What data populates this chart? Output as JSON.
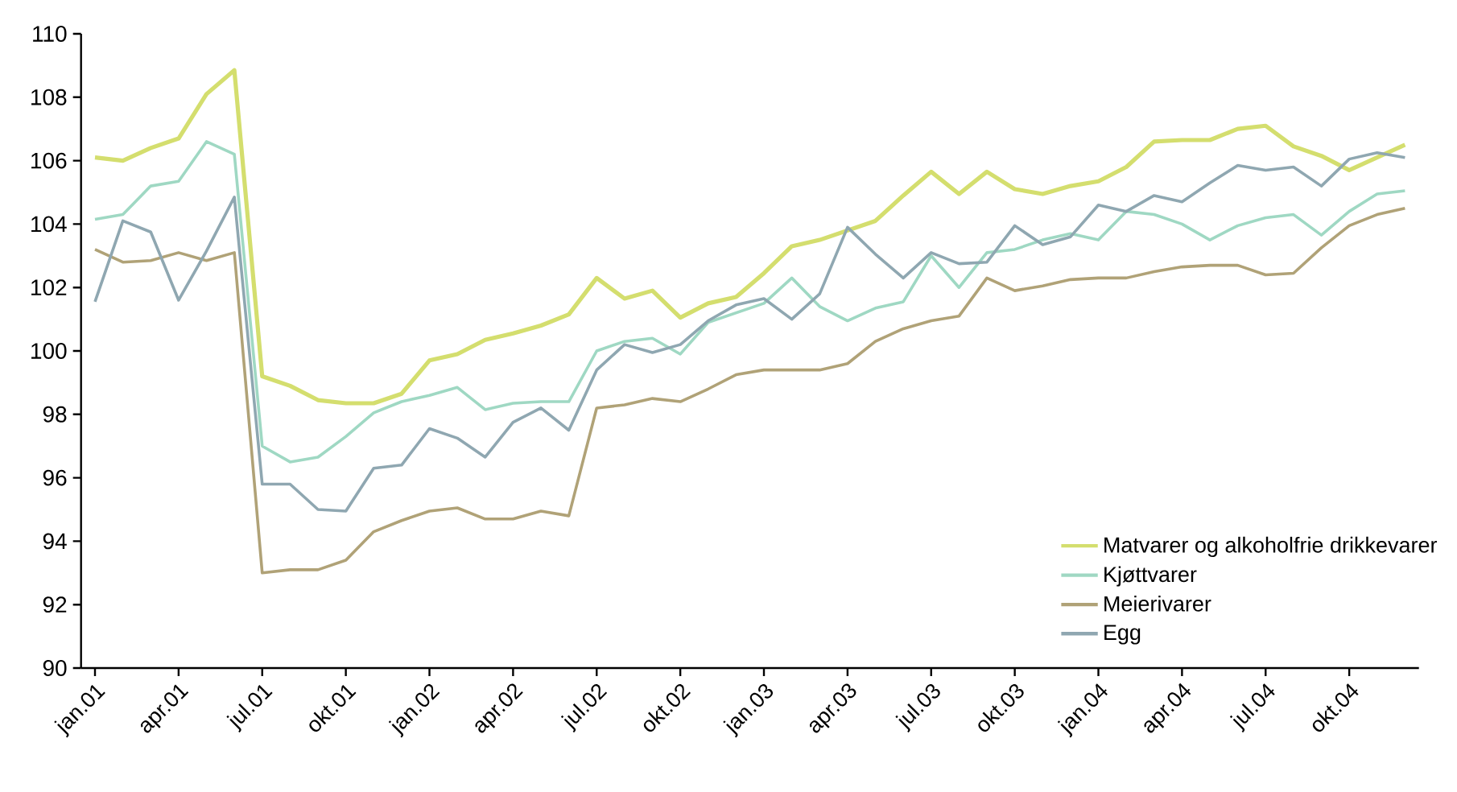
{
  "chart_data": {
    "type": "line",
    "categories": [
      "jan.01",
      null,
      null,
      "apr.01",
      null,
      null,
      "jul.01",
      null,
      null,
      "okt.01",
      null,
      null,
      "jan.02",
      null,
      null,
      "apr.02",
      null,
      null,
      "jul.02",
      null,
      null,
      "okt.02",
      null,
      null,
      "jan.03",
      null,
      null,
      "apr.03",
      null,
      null,
      "jul.03",
      null,
      null,
      "okt.03",
      null,
      null,
      "jan.04",
      null,
      null,
      "apr.04",
      null,
      null,
      "jul.04",
      null,
      null,
      "okt.04",
      null,
      null
    ],
    "series": [
      {
        "name": "Matvarer og alkoholfrie drikkevarer",
        "color": "#d4de6e",
        "values": [
          106.1,
          106.0,
          106.4,
          106.7,
          108.1,
          108.85,
          99.2,
          98.9,
          98.45,
          98.35,
          98.35,
          98.65,
          99.7,
          99.9,
          100.35,
          100.55,
          100.8,
          101.15,
          102.3,
          101.65,
          101.9,
          101.05,
          101.5,
          101.7,
          102.45,
          103.3,
          103.5,
          103.8,
          104.1,
          104.9,
          105.65,
          104.95,
          105.65,
          105.1,
          104.95,
          105.2,
          105.35,
          105.8,
          106.6,
          106.65,
          106.65,
          107.0,
          107.1,
          106.45,
          106.15,
          105.7,
          106.1,
          106.5
        ]
      },
      {
        "name": "Kjøttvarer",
        "color": "#9fd8c3",
        "values": [
          104.15,
          104.3,
          105.2,
          105.35,
          106.6,
          106.2,
          97.0,
          96.5,
          96.65,
          97.3,
          98.05,
          98.4,
          98.6,
          98.85,
          98.15,
          98.35,
          98.4,
          98.4,
          100.0,
          100.3,
          100.4,
          99.9,
          100.9,
          101.2,
          101.5,
          102.3,
          101.4,
          100.95,
          101.35,
          101.55,
          103.0,
          102.0,
          103.1,
          103.2,
          103.5,
          103.7,
          103.5,
          104.4,
          104.3,
          104.0,
          103.5,
          103.95,
          104.2,
          104.3,
          103.65,
          104.4,
          104.95,
          105.05
        ]
      },
      {
        "name": "Meierivarer",
        "color": "#b0a277",
        "values": [
          103.2,
          102.8,
          102.85,
          103.1,
          102.85,
          103.1,
          93.0,
          93.1,
          93.1,
          93.4,
          94.3,
          94.65,
          94.95,
          95.05,
          94.7,
          94.7,
          94.95,
          94.8,
          98.2,
          98.3,
          98.5,
          98.4,
          98.8,
          99.25,
          99.4,
          99.4,
          99.4,
          99.6,
          100.3,
          100.7,
          100.95,
          101.1,
          102.3,
          101.9,
          102.05,
          102.25,
          102.3,
          102.3,
          102.5,
          102.65,
          102.7,
          102.7,
          102.4,
          102.45,
          103.25,
          103.95,
          104.3,
          104.5
        ]
      },
      {
        "name": "Egg",
        "color": "#8fa7b1",
        "values": [
          101.55,
          104.1,
          103.75,
          101.6,
          103.15,
          104.85,
          95.8,
          95.8,
          95.0,
          94.95,
          96.3,
          96.4,
          97.55,
          97.25,
          96.65,
          97.75,
          98.2,
          97.5,
          99.4,
          100.2,
          99.95,
          100.2,
          100.95,
          101.45,
          101.65,
          101.0,
          101.8,
          103.9,
          103.05,
          102.3,
          103.1,
          102.75,
          102.8,
          103.95,
          103.35,
          103.6,
          104.6,
          104.4,
          104.9,
          104.7,
          105.3,
          105.85,
          105.7,
          105.8,
          105.2,
          106.05,
          106.25,
          106.1
        ]
      }
    ],
    "ylim": [
      90,
      110
    ],
    "yticks": [
      90,
      92,
      94,
      96,
      98,
      100,
      102,
      104,
      106,
      108,
      110
    ],
    "grid": false,
    "legend": "bottom right",
    "marker": "none",
    "line_style": "solid"
  }
}
